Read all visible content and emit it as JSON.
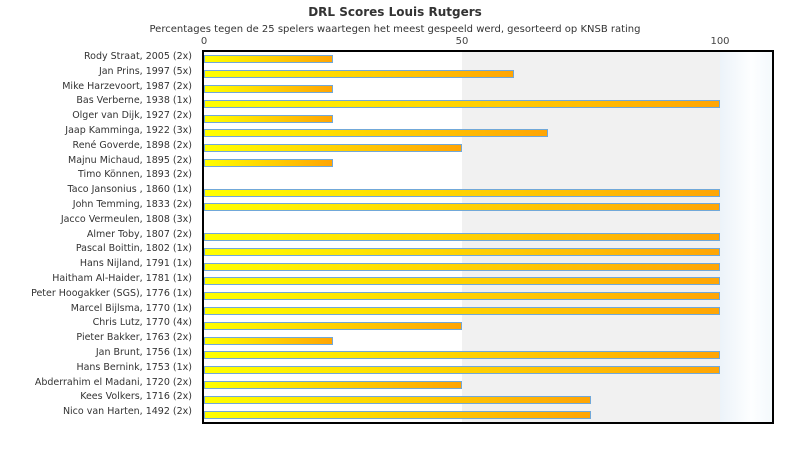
{
  "header": {
    "title": "DRL Scores Louis Rutgers",
    "subtitle": "Percentages tegen de 25 spelers waartegen het meest gespeeld werd, gesorteerd op KNSB rating"
  },
  "chart_data": {
    "type": "bar",
    "orientation": "horizontal",
    "title": "DRL Scores Louis Rutgers",
    "subtitle": "Percentages tegen de 25 spelers waartegen het meest gespeeld werd, gesorteerd op KNSB rating",
    "xlabel": "",
    "ylabel": "",
    "xlim": [
      0,
      110
    ],
    "x_ticks": [
      0,
      50,
      100
    ],
    "grid": "vertical-bands",
    "legend": "none",
    "categories": [
      "Rody Straat, 2005 (2x)",
      "Jan Prins, 1997 (5x)",
      "Mike Harzevoort, 1987 (2x)",
      "Bas Verberne, 1938 (1x)",
      "Olger van Dijk, 1927 (2x)",
      "Jaap Kamminga, 1922 (3x)",
      "René Goverde, 1898 (2x)",
      "Majnu Michaud, 1895 (2x)",
      "Timo Können, 1893 (2x)",
      "Taco Jansonius , 1860 (1x)",
      "John Temming, 1833 (2x)",
      "Jacco Vermeulen, 1808 (3x)",
      "Almer Toby, 1807 (2x)",
      "Pascal Boittin, 1802 (1x)",
      "Hans Nijland, 1791 (1x)",
      "Haitham Al-Haider, 1781 (1x)",
      "Peter Hoogakker (SGS), 1776 (1x)",
      "Marcel Bijlsma, 1770 (1x)",
      "Chris Lutz, 1770 (4x)",
      "Pieter Bakker, 1763 (2x)",
      "Jan Brunt, 1756 (1x)",
      "Hans Bernink, 1753 (1x)",
      "Abderrahim el Madani, 1720 (2x)",
      "Kees Volkers, 1716 (2x)",
      "Nico van Harten, 1492 (2x)"
    ],
    "values": [
      25,
      60,
      25,
      100,
      25,
      66.7,
      50,
      25,
      0,
      100,
      100,
      0,
      100,
      100,
      100,
      100,
      100,
      100,
      50,
      25,
      100,
      100,
      50,
      75,
      75
    ],
    "colors": {
      "bar_gradient_start": "#ffff00",
      "bar_gradient_end": "#ffa505",
      "bar_border": "#71a8d9",
      "band_white": "#ffffff",
      "band_gray": "#f1f1f1",
      "band_right_gradient_start": "#ecf3f9",
      "band_right_gradient_end": "#fdfeff",
      "plot_border": "#000000",
      "text": "#333333"
    }
  }
}
